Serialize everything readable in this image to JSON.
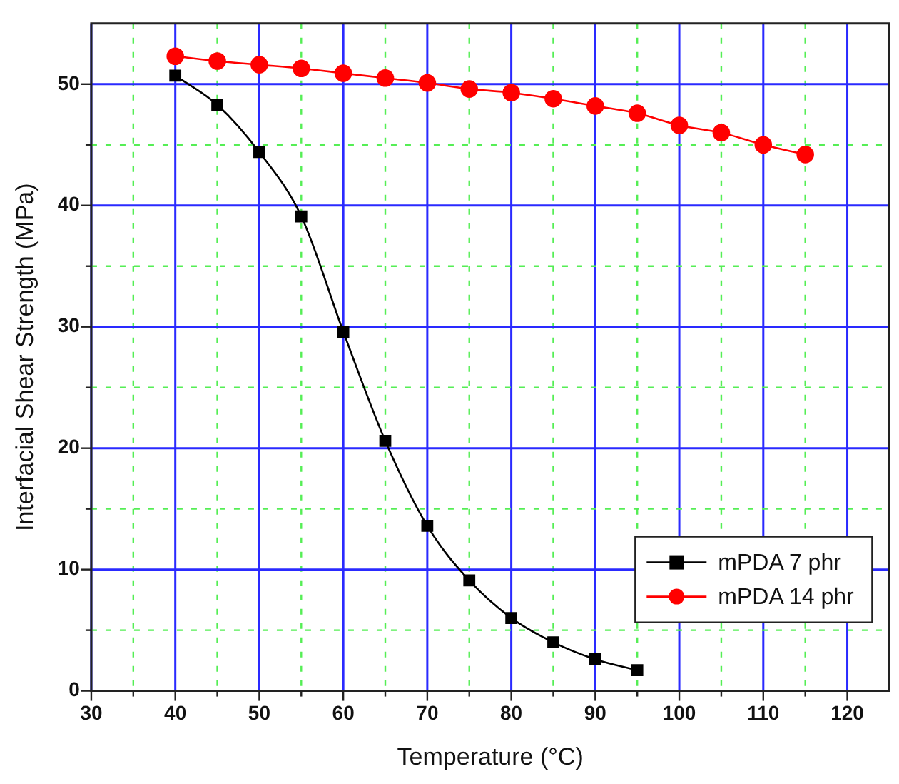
{
  "chart_data": {
    "type": "line",
    "xlabel": "Temperature (°C)",
    "ylabel": "Interfacial Shear Strength (MPa)",
    "x": [
      40,
      45,
      50,
      55,
      60,
      65,
      70,
      75,
      80,
      85,
      90,
      95,
      100,
      105,
      110,
      115
    ],
    "series": [
      {
        "name": "mPDA 7 phr",
        "color": "#000000",
        "marker": "square",
        "values": [
          50.7,
          48.3,
          44.4,
          39.1,
          29.6,
          20.6,
          13.6,
          9.1,
          6.0,
          4.0,
          2.6,
          1.7,
          null,
          null,
          null,
          null
        ]
      },
      {
        "name": "mPDA 14 phr",
        "color": "#ff0000",
        "marker": "circle",
        "values": [
          52.3,
          51.9,
          51.6,
          51.3,
          50.9,
          50.5,
          50.1,
          49.6,
          49.3,
          48.8,
          48.2,
          47.6,
          46.6,
          46.0,
          45.0,
          44.2
        ]
      }
    ],
    "xlim": [
      30,
      125
    ],
    "xticks": [
      30,
      {
        "value": 35,
        "label": null
      },
      40,
      {
        "value": 45,
        "label": null
      },
      50,
      {
        "value": 55,
        "label": null
      },
      60,
      {
        "value": 65,
        "label": null
      },
      70,
      {
        "value": 75,
        "label": null
      },
      80,
      {
        "value": 85,
        "label": null
      },
      90,
      {
        "value": 95,
        "label": null
      },
      100,
      {
        "value": 105,
        "label": null
      },
      110,
      {
        "value": 115,
        "label": null
      },
      120
    ],
    "ylim": [
      0,
      55
    ],
    "yticks": [
      0,
      {
        "value": 5,
        "label": null
      },
      10,
      {
        "value": 15,
        "label": null
      },
      20,
      {
        "value": 25,
        "label": null
      },
      30,
      {
        "value": 35,
        "label": null
      },
      40,
      {
        "value": 45,
        "label": null
      },
      50
    ],
    "grid": true,
    "legend": "bottom right",
    "line_style": "solid"
  }
}
